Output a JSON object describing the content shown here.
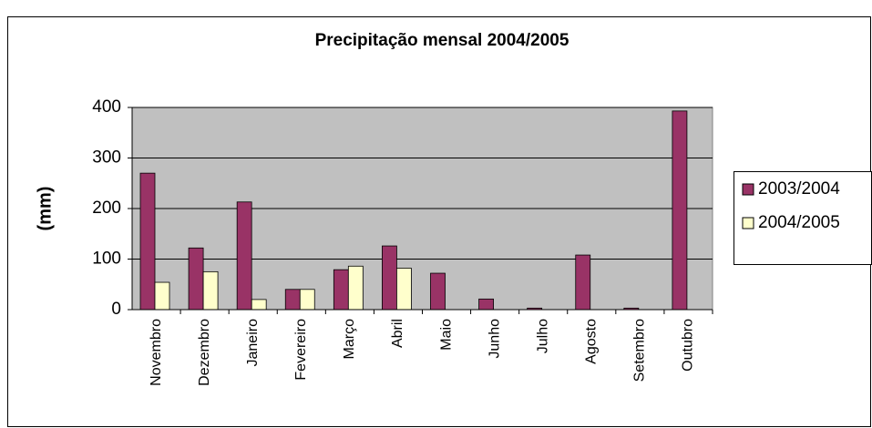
{
  "chart_data": {
    "type": "bar",
    "title": "Precipitação mensal 2004/2005",
    "y_label": "(mm)",
    "categories": [
      "Novembro",
      "Dezembro",
      "Janeiro",
      "Fevereiro",
      "Março",
      "Abril",
      "Maio",
      "Junho",
      "Julho",
      "Agosto",
      "Setembro",
      "Outubro"
    ],
    "series": [
      {
        "name": "2003/2004",
        "color": "#993366",
        "values": [
          270,
          122,
          213,
          40,
          79,
          126,
          72,
          21,
          3,
          108,
          3,
          393
        ]
      },
      {
        "name": "2004/2005",
        "color": "#ffffcc",
        "values": [
          54,
          75,
          20,
          40,
          86,
          82,
          null,
          null,
          null,
          null,
          null,
          null
        ]
      }
    ],
    "ylim": [
      0,
      400
    ],
    "yticks": [
      0,
      100,
      200,
      300,
      400
    ],
    "grid": true,
    "legend": "right"
  }
}
